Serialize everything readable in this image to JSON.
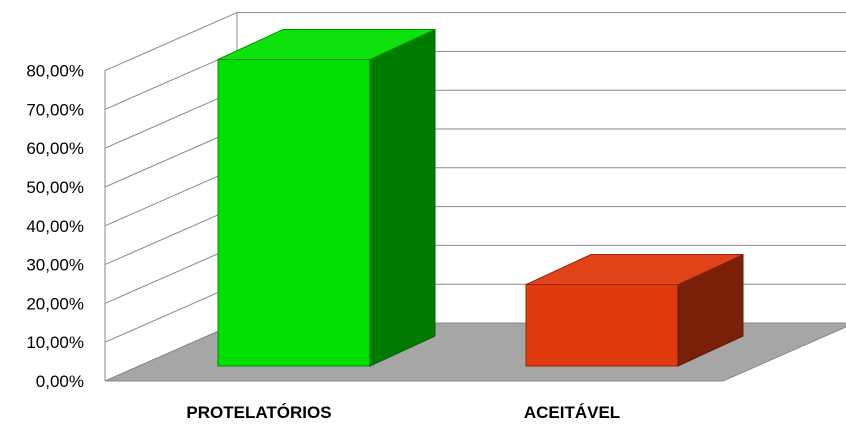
{
  "chart_data": {
    "type": "bar",
    "categories": [
      "PROTELATÓRIOS",
      "ACEITÁVEL"
    ],
    "values": [
      79,
      21
    ],
    "ylim": [
      0,
      80
    ],
    "yticks": [
      "0,00%",
      "10,00%",
      "20,00%",
      "30,00%",
      "40,00%",
      "50,00%",
      "60,00%",
      "70,00%",
      "80,00%"
    ],
    "grid": true,
    "colors": {
      "bars": [
        "#00e000",
        "#e03a0e"
      ],
      "floor": "#a6a6a6"
    }
  }
}
